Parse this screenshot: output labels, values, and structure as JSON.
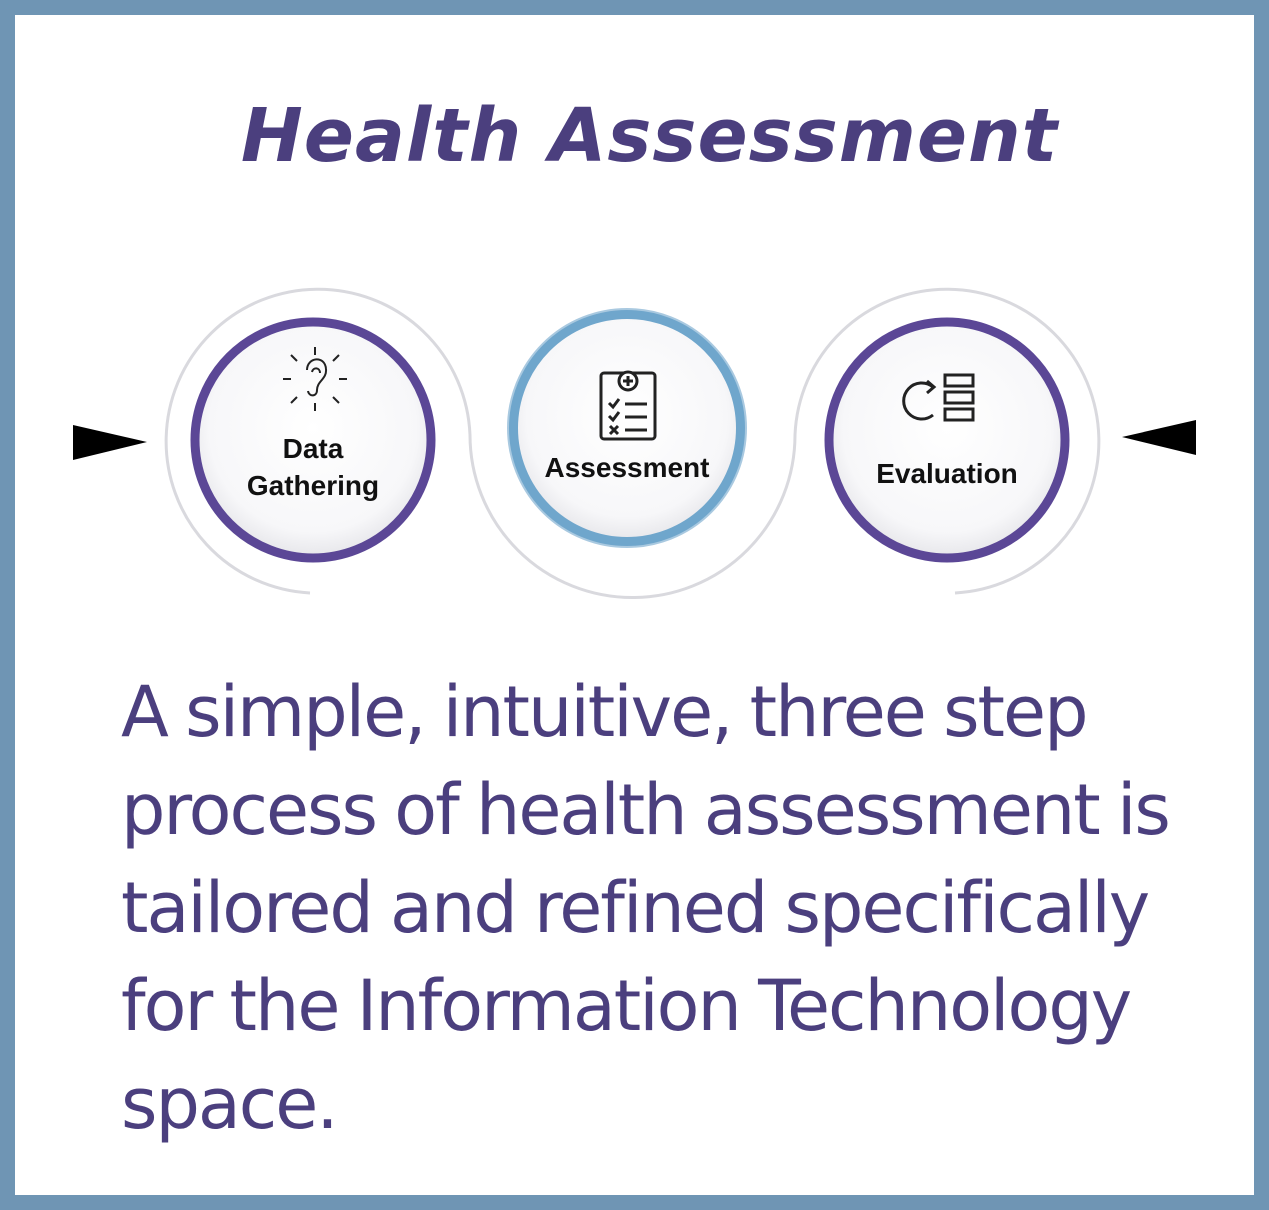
{
  "title": "Health Assessment",
  "steps": [
    {
      "label_line1": "Data",
      "label_line2": "Gathering",
      "icon": "ear-listening-icon",
      "ring_color": "#5b4796"
    },
    {
      "label": "Assessment",
      "icon": "clipboard-checklist-icon",
      "ring_color": "#6fa6cc"
    },
    {
      "label": "Evaluation",
      "icon": "refresh-list-icon",
      "ring_color": "#5b4796"
    }
  ],
  "description": "A simple, intuitive, three step process of health assessment is tailored and refined specifically for the Information Technology space.",
  "colors": {
    "frame_border": "#6f95b4",
    "title_text": "#4b3f7e",
    "body_text": "#4b3f7e",
    "purple_ring": "#5b4796",
    "blue_ring": "#6fa6cc",
    "arrow": "#000000"
  }
}
